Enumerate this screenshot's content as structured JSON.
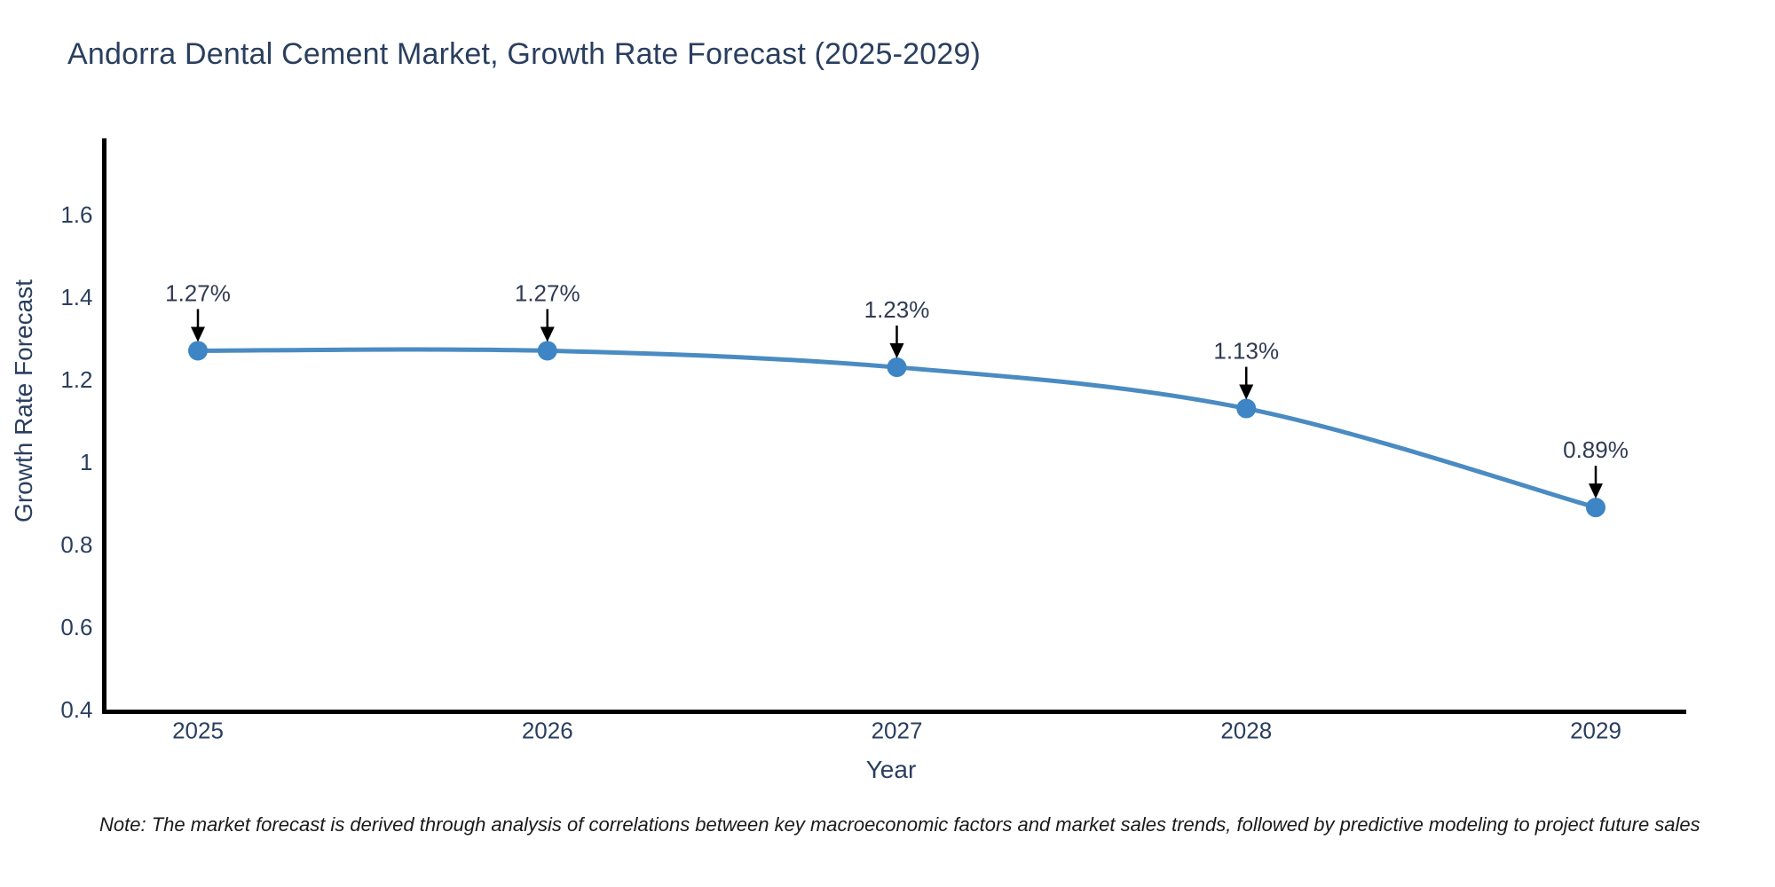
{
  "note": "Note: The market forecast is derived through analysis of correlations between key macroeconomic factors and market sales trends, followed by predictive modeling to project future sales",
  "chart_data": {
    "type": "line",
    "title": "Andorra Dental Cement Market, Growth Rate Forecast (2025-2029)",
    "xlabel": "Year",
    "ylabel": "Growth Rate Forecast",
    "categories": [
      2025,
      2026,
      2027,
      2028,
      2029
    ],
    "series": [
      {
        "name": "Growth Rate Forecast",
        "values": [
          1.27,
          1.27,
          1.23,
          1.13,
          0.89
        ]
      }
    ],
    "point_labels": [
      "1.27%",
      "1.27%",
      "1.23%",
      "1.13%",
      "0.89%"
    ],
    "x_tick_labels": [
      "2025",
      "2026",
      "2027",
      "2028",
      "2029"
    ],
    "y_tick_labels": [
      "0.4",
      "0.6",
      "0.8",
      "1",
      "1.2",
      "1.4",
      "1.6"
    ],
    "y_tick_values": [
      0.4,
      0.6,
      0.8,
      1.0,
      1.2,
      1.4,
      1.6
    ],
    "ylim": [
      0.4,
      1.79
    ],
    "grid": false,
    "legend_position": "none",
    "line_shape": "spline",
    "colors": {
      "line": "#4a8bc2",
      "marker": "#3d85c4",
      "axis": "#000000",
      "arrow": "#000000",
      "tick_text": "#2a3f5f",
      "annotation_text": "#2f3b52",
      "title_text": "#2a3f5f"
    }
  }
}
